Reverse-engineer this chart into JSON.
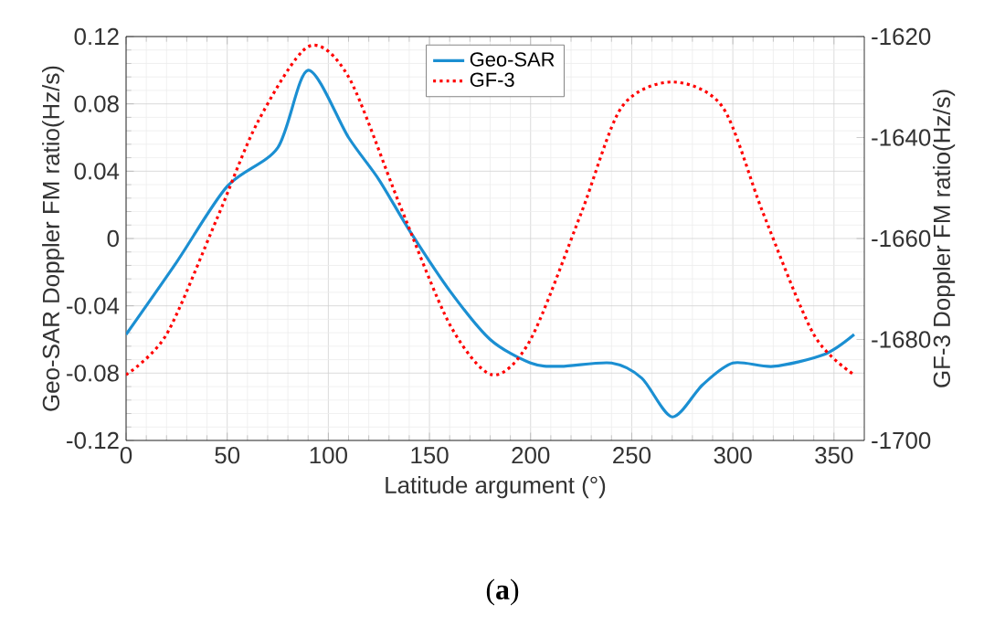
{
  "chart_data": {
    "type": "line",
    "xlabel": "Latitude argument   (°)",
    "ylabel": "Geo-SAR Doppler FM ratio(Hz/s)",
    "y2label": "GF-3 Doppler FM ratio(Hz/s)",
    "xlim": [
      0,
      365
    ],
    "xticks": [
      0,
      50,
      100,
      150,
      200,
      250,
      300,
      350
    ],
    "ylim": [
      -0.12,
      0.12
    ],
    "yticks": [
      -0.12,
      -0.08,
      -0.04,
      0,
      0.04,
      0.08,
      0.12
    ],
    "y2lim": [
      -1700,
      -1620
    ],
    "y2ticks": [
      -1700,
      -1680,
      -1660,
      -1640,
      -1620
    ],
    "grid": true,
    "legend": "top",
    "annotations": [
      "(**a**)"
    ],
    "series": [
      {
        "name": "Geo-SAR",
        "color": "#1b8fd2",
        "line_style": "solid",
        "x": [
          0,
          25,
          50,
          75,
          90,
          110,
          125,
          140,
          160,
          180,
          200,
          215,
          240,
          255,
          270,
          285,
          300,
          320,
          345,
          360
        ],
        "values": [
          -0.057,
          -0.014,
          0.031,
          0.054,
          0.1,
          0.06,
          0.035,
          0.005,
          -0.031,
          -0.06,
          -0.074,
          -0.076,
          -0.074,
          -0.083,
          -0.106,
          -0.087,
          -0.074,
          -0.076,
          -0.069,
          -0.057
        ]
      },
      {
        "name": "GF-3",
        "color": "#ff0000",
        "line_style": "dotted",
        "axis": "y2",
        "x": [
          0,
          20,
          45,
          65,
          90,
          110,
          135,
          160,
          181,
          200,
          225,
          245,
          270,
          295,
          315,
          340,
          360
        ],
        "values": [
          -1687,
          -1679,
          -1656,
          -1637,
          -1622,
          -1628,
          -1653,
          -1677,
          -1687,
          -1680,
          -1655,
          -1634,
          -1629,
          -1634,
          -1655,
          -1679,
          -1687
        ]
      }
    ]
  }
}
